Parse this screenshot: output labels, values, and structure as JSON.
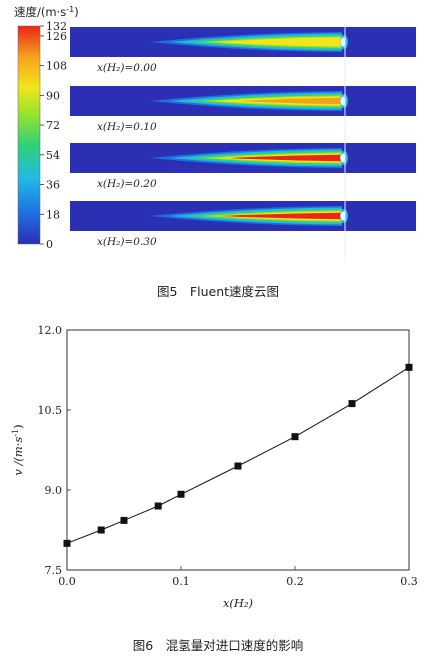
{
  "fig5": {
    "colorbar_title": "速度/(m·s",
    "colorbar_title_sup": "-1",
    "colorbar_title_end": ")",
    "colorbar_ticks": [
      132,
      126,
      108,
      90,
      72,
      54,
      36,
      18,
      0
    ],
    "colorbar_range": [
      0,
      132
    ],
    "panels": [
      {
        "label": "x(H₂)=0.00",
        "xh2": 0.0
      },
      {
        "label": "x(H₂)=0.10",
        "xh2": 0.1
      },
      {
        "label": "x(H₂)=0.20",
        "xh2": 0.2
      },
      {
        "label": "x(H₂)=0.30",
        "xh2": 0.3
      }
    ],
    "caption": "图5　Fluent速度云图",
    "colors": [
      "#2a2fb4",
      "#1f6fe0",
      "#22b9e6",
      "#2fd07a",
      "#9be22c",
      "#f2e51c",
      "#f6a11b",
      "#e8261a"
    ]
  },
  "chart_data": {
    "type": "line",
    "xlabel": "x(H₂)",
    "ylabel": "v /(m·s",
    "ylabel_sup": "-1",
    "ylabel_end": ")",
    "xlim": [
      0.0,
      0.3
    ],
    "ylim": [
      7.5,
      12.0
    ],
    "xticks": [
      "0.0",
      "0.1",
      "0.2",
      "0.3"
    ],
    "yticks": [
      "7.5",
      "9.0",
      "10.5",
      "12.0"
    ],
    "series": [
      {
        "marker": "square",
        "x": [
          0.0,
          0.03,
          0.05,
          0.08,
          0.1,
          0.15,
          0.2,
          0.25,
          0.3
        ],
        "y": [
          8.0,
          8.25,
          8.43,
          8.7,
          8.92,
          9.45,
          10.0,
          10.62,
          11.3
        ]
      }
    ],
    "caption": "图6　混氢量对进口速度的影响"
  }
}
